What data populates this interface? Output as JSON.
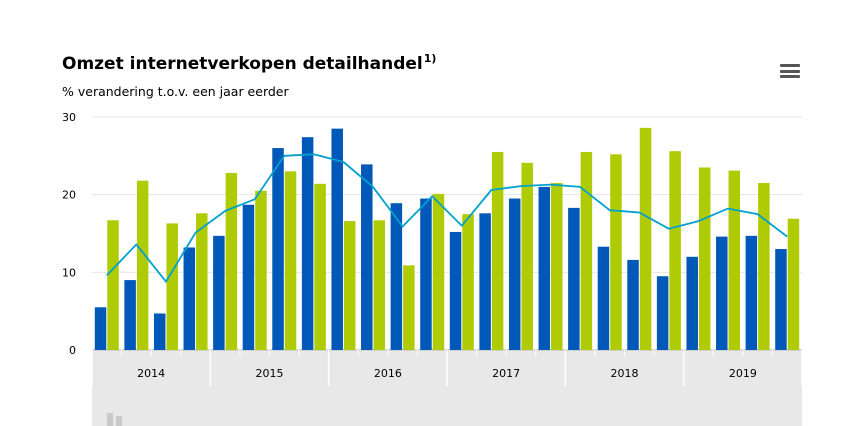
{
  "header": {
    "title": "Omzet internetverkopen detailhandel",
    "title_superscript": "1)",
    "subtitle": "% verandering t.o.v. een jaar eerder",
    "menu_icon": "hamburger-menu-icon",
    "footer_logo": "cbs-logo"
  },
  "colors": {
    "series_blue": "#0058b8",
    "series_green": "#afcb05",
    "line": "#00a1cd",
    "grid": "#e4e4e4",
    "axis_band": "#e8e8e8"
  },
  "chart_data": {
    "type": "bar",
    "years": [
      "2014",
      "2015",
      "2016",
      "2017",
      "2018",
      "2019"
    ],
    "periods_per_year": 4,
    "ylim": [
      0,
      30
    ],
    "yticks": [
      0,
      10,
      20,
      30
    ],
    "grid": true,
    "legend": "none",
    "series": [
      {
        "type": "bar",
        "color_key": "series_blue",
        "values": [
          5.5,
          9.0,
          4.7,
          13.2,
          14.7,
          18.7,
          26.0,
          27.4,
          28.5,
          23.9,
          18.9,
          19.5,
          15.2,
          17.6,
          19.5,
          21.0,
          18.3,
          13.3,
          11.6,
          9.5,
          12.0,
          14.6,
          14.7,
          13.0
        ]
      },
      {
        "type": "bar",
        "color_key": "series_green",
        "values": [
          16.7,
          21.8,
          16.3,
          17.6,
          22.8,
          20.5,
          23.0,
          21.4,
          16.6,
          16.7,
          10.9,
          20.1,
          17.5,
          25.5,
          24.1,
          21.5,
          25.5,
          25.2,
          28.6,
          25.6,
          23.5,
          23.1,
          21.5,
          16.9
        ]
      },
      {
        "type": "line",
        "color_key": "line",
        "values": [
          9.6,
          13.6,
          8.8,
          15.1,
          17.9,
          19.4,
          25.0,
          25.2,
          24.2,
          21.0,
          15.9,
          19.8,
          16.0,
          20.6,
          21.1,
          21.3,
          21.0,
          18.0,
          17.7,
          15.6,
          16.6,
          18.2,
          17.5,
          14.6
        ]
      }
    ]
  }
}
